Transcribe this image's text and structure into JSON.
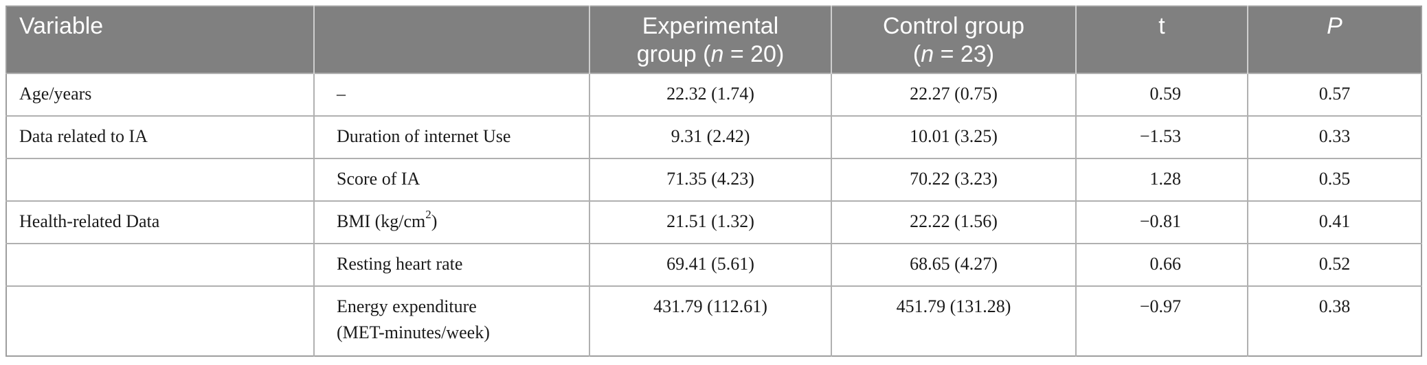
{
  "table": {
    "headers": {
      "variable": "Variable",
      "sub": "",
      "exp_line1": "Experimental",
      "exp_line2_pre": "group (",
      "exp_line2_n": "n",
      "exp_line2_post": " = 20)",
      "ctrl_line1": "Control group",
      "ctrl_line2_pre": "(",
      "ctrl_line2_n": "n",
      "ctrl_line2_post": " = 23)",
      "t": "t",
      "p": "P"
    },
    "rows": [
      {
        "variable": "Age/years",
        "sub": "–",
        "sub_sup": "",
        "sub_line2": "",
        "experimental": "22.32 (1.74)",
        "control": "22.27 (0.75)",
        "t": "0.59",
        "p": "0.57"
      },
      {
        "variable": "Data related to IA",
        "sub": "Duration of internet Use",
        "sub_sup": "",
        "sub_line2": "",
        "experimental": "9.31 (2.42)",
        "control": "10.01 (3.25)",
        "t": "−1.53",
        "p": "0.33"
      },
      {
        "variable": "",
        "sub": "Score of IA",
        "sub_sup": "",
        "sub_line2": "",
        "experimental": "71.35 (4.23)",
        "control": "70.22 (3.23)",
        "t": "1.28",
        "p": "0.35"
      },
      {
        "variable": "Health-related Data",
        "sub": "BMI (kg/cm",
        "sub_sup": "2",
        "sub_after": ")",
        "sub_line2": "",
        "experimental": "21.51 (1.32)",
        "control": "22.22 (1.56)",
        "t": "−0.81",
        "p": "0.41"
      },
      {
        "variable": "",
        "sub": "Resting heart rate",
        "sub_sup": "",
        "sub_line2": "",
        "experimental": "69.41 (5.61)",
        "control": "68.65 (4.27)",
        "t": "0.66",
        "p": "0.52"
      },
      {
        "variable": "",
        "sub": "Energy expenditure",
        "sub_sup": "",
        "sub_line2": "(MET-minutes/week)",
        "experimental": "431.79 (112.61)",
        "control": "451.79 (131.28)",
        "t": "−0.97",
        "p": "0.38"
      }
    ]
  }
}
